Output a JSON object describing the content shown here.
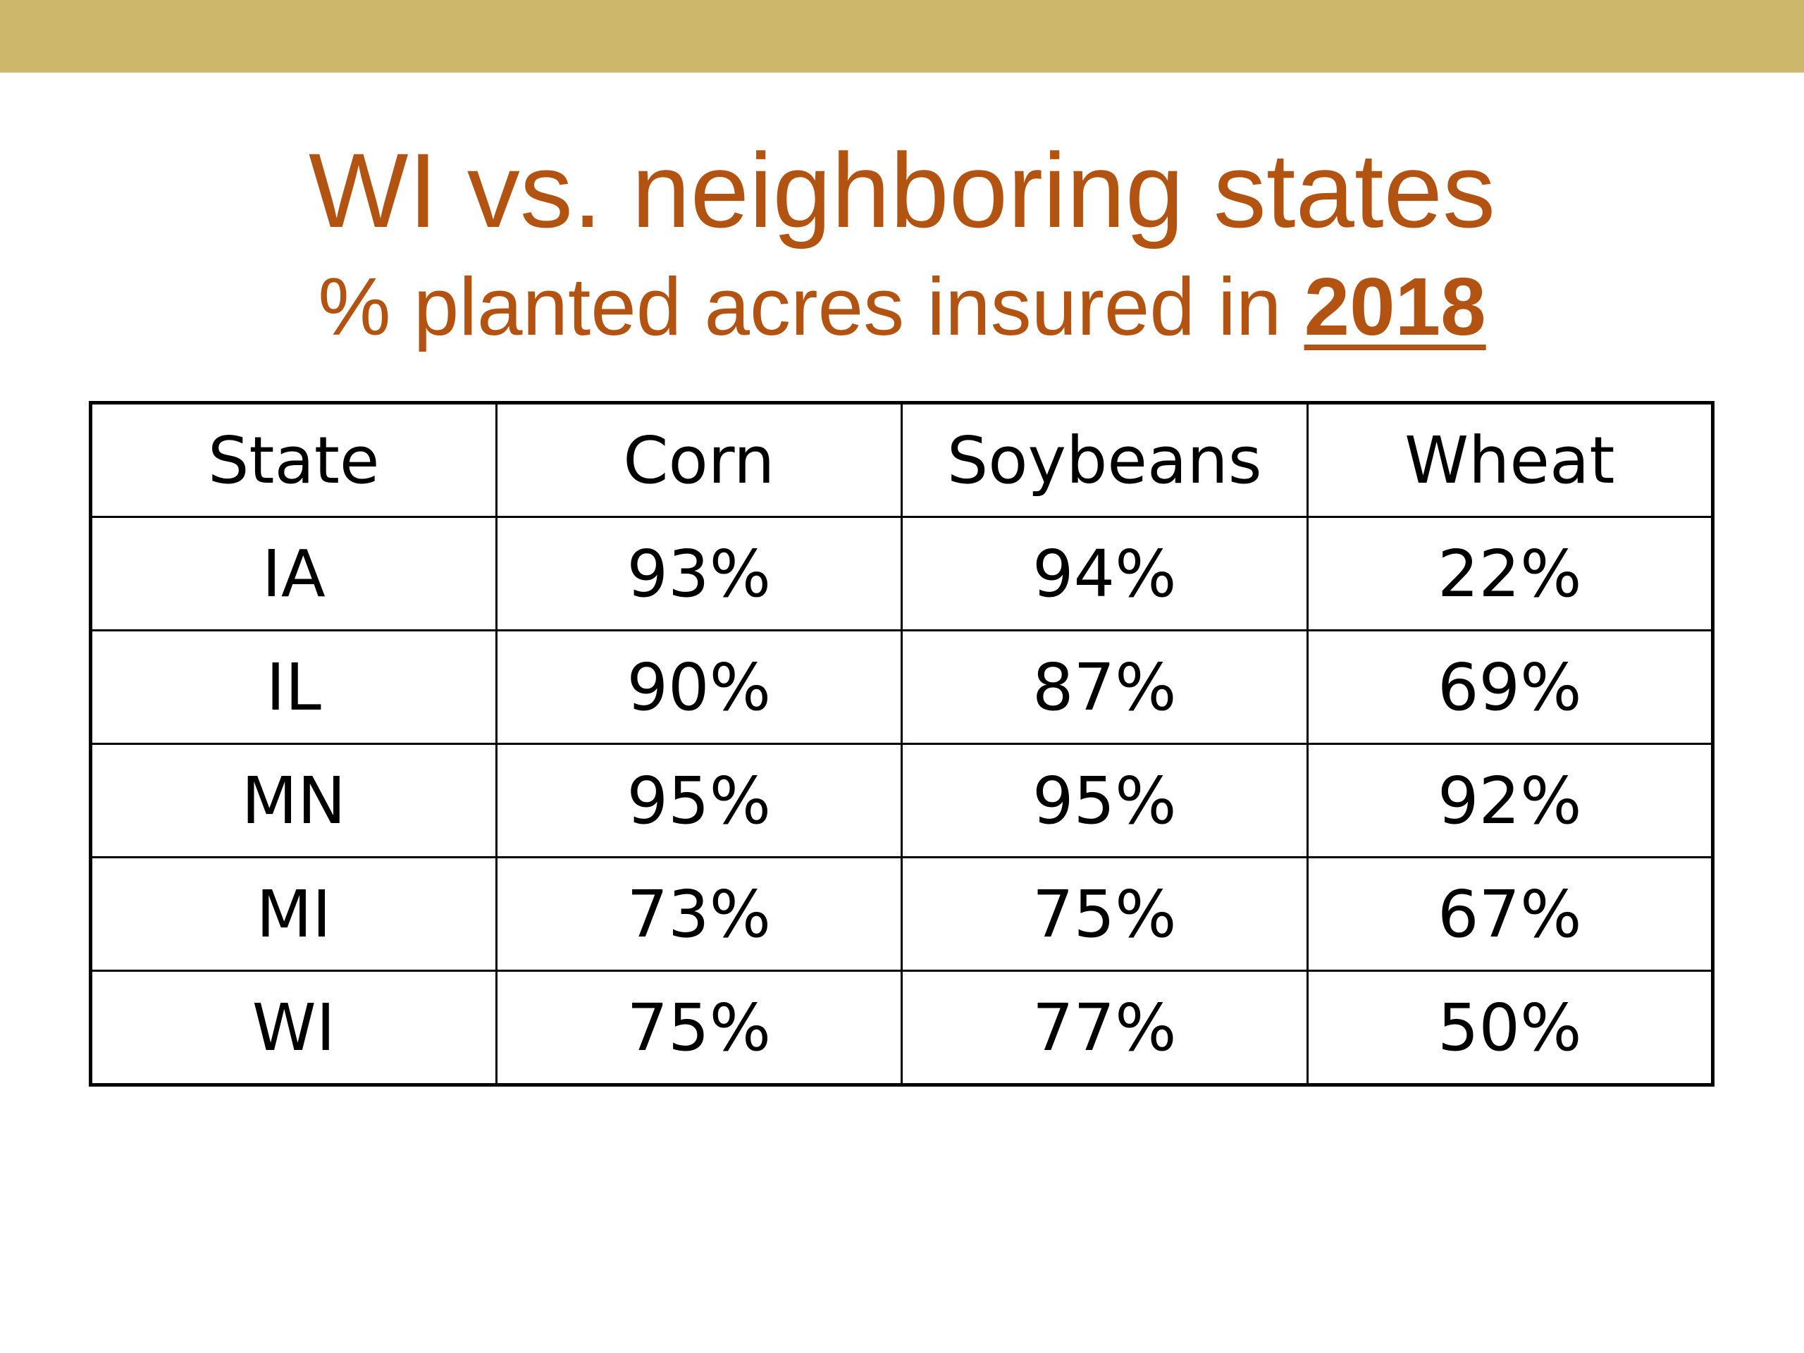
{
  "colors": {
    "top_band": "#cdb76a",
    "title": "#b35312",
    "table_text": "#000000"
  },
  "title": "WI vs. neighboring states",
  "subtitle": {
    "text": "% planted acres insured in ",
    "year": "2018"
  },
  "table": {
    "headers": [
      "State",
      "Corn",
      "Soybeans",
      "Wheat"
    ],
    "rows": [
      [
        "IA",
        "93%",
        "94%",
        "22%"
      ],
      [
        "IL",
        "90%",
        "87%",
        "69%"
      ],
      [
        "MN",
        "95%",
        "95%",
        "92%"
      ],
      [
        "MI",
        "73%",
        "75%",
        "67%"
      ],
      [
        "WI",
        "75%",
        "77%",
        "50%"
      ]
    ]
  }
}
